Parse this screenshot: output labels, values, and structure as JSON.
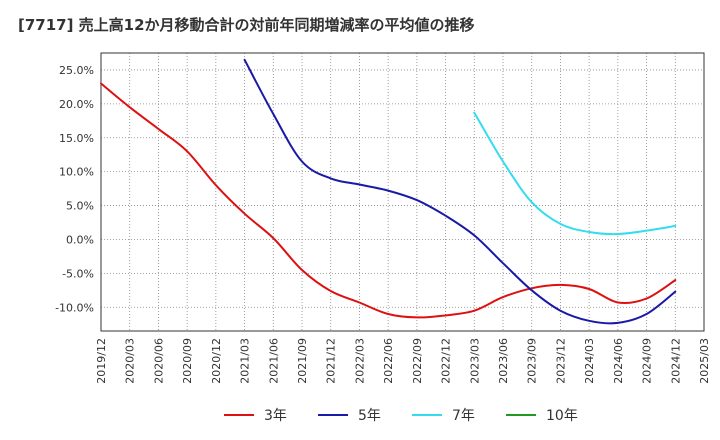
{
  "title": "[7717]  売上高12か月移動合計の対前年同期増減率の平均値の推移",
  "chart_data": {
    "type": "line",
    "title": "[7717]  売上高12か月移動合計の対前年同期増減率の平均値の推移",
    "xlabel": "",
    "ylabel": "",
    "x_ticks": [
      "2019/12",
      "2020/03",
      "2020/06",
      "2020/09",
      "2020/12",
      "2021/03",
      "2021/06",
      "2021/09",
      "2021/12",
      "2022/03",
      "2022/06",
      "2022/09",
      "2022/12",
      "2023/03",
      "2023/06",
      "2023/09",
      "2023/12",
      "2024/03",
      "2024/06",
      "2024/09",
      "2024/12",
      "2025/03"
    ],
    "y_ticks": [
      "-10.0%",
      "-5.0%",
      "0.0%",
      "5.0%",
      "10.0%",
      "15.0%",
      "20.0%",
      "25.0%"
    ],
    "ylim": [
      -13.5,
      27.5
    ],
    "grid": true,
    "legend_position": "bottom",
    "series": [
      {
        "name": "3年",
        "color": "#dd1111",
        "points": [
          [
            "2019/12",
            23.0
          ],
          [
            "2020/03",
            19.5
          ],
          [
            "2020/06",
            16.3
          ],
          [
            "2020/09",
            13.0
          ],
          [
            "2020/12",
            8.0
          ],
          [
            "2021/03",
            3.8
          ],
          [
            "2021/06",
            0.2
          ],
          [
            "2021/09",
            -4.5
          ],
          [
            "2021/12",
            -7.6
          ],
          [
            "2022/03",
            -9.3
          ],
          [
            "2022/06",
            -11.0
          ],
          [
            "2022/09",
            -11.5
          ],
          [
            "2022/12",
            -11.2
          ],
          [
            "2023/03",
            -10.5
          ],
          [
            "2023/06",
            -8.5
          ],
          [
            "2023/09",
            -7.2
          ],
          [
            "2023/12",
            -6.7
          ],
          [
            "2024/03",
            -7.3
          ],
          [
            "2024/06",
            -9.3
          ],
          [
            "2024/09",
            -8.7
          ],
          [
            "2024/12",
            -6.0
          ]
        ]
      },
      {
        "name": "5年",
        "color": "#1a1aa6",
        "points": [
          [
            "2021/03",
            26.5
          ],
          [
            "2021/06",
            18.5
          ],
          [
            "2021/09",
            11.5
          ],
          [
            "2021/12",
            9.0
          ],
          [
            "2022/03",
            8.1
          ],
          [
            "2022/06",
            7.2
          ],
          [
            "2022/09",
            5.8
          ],
          [
            "2022/12",
            3.5
          ],
          [
            "2023/03",
            0.6
          ],
          [
            "2023/06",
            -3.5
          ],
          [
            "2023/09",
            -7.5
          ],
          [
            "2023/12",
            -10.5
          ],
          [
            "2024/03",
            -12.0
          ],
          [
            "2024/06",
            -12.3
          ],
          [
            "2024/09",
            -11.0
          ],
          [
            "2024/12",
            -7.7
          ]
        ]
      },
      {
        "name": "7年",
        "color": "#33ddee",
        "points": [
          [
            "2023/03",
            18.7
          ],
          [
            "2023/06",
            11.5
          ],
          [
            "2023/09",
            5.5
          ],
          [
            "2023/12",
            2.3
          ],
          [
            "2024/03",
            1.1
          ],
          [
            "2024/06",
            0.8
          ],
          [
            "2024/09",
            1.3
          ],
          [
            "2024/12",
            2.0
          ]
        ]
      },
      {
        "name": "10年",
        "color": "#229922",
        "points": []
      }
    ]
  }
}
